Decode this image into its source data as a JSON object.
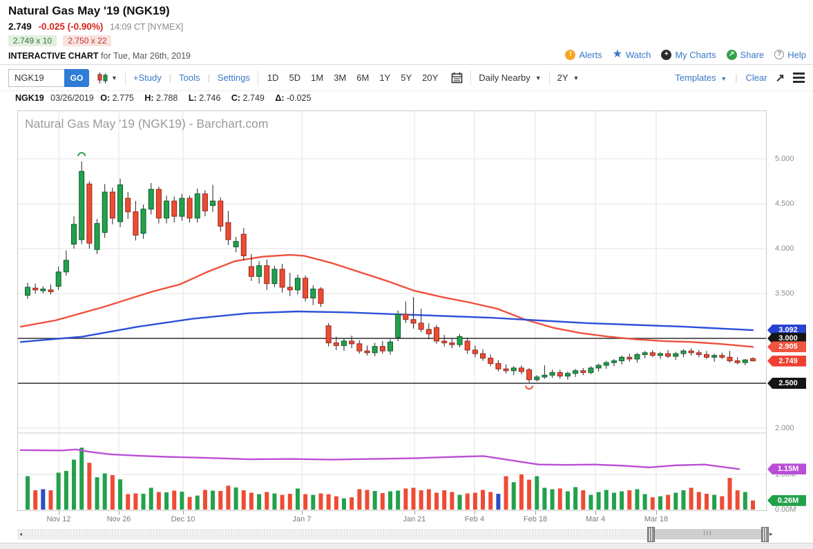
{
  "header": {
    "title": "Natural Gas May '19 (NGK19)",
    "last_price": "2.749",
    "change": "-0.025 (-0.90%)",
    "quote_time": "14:09 CT [NYMEX]",
    "bid": "2.749 x 10",
    "ask": "2.750 x 22",
    "chart_label": "INTERACTIVE CHART",
    "chart_date": " for Tue, Mar 26th, 2019",
    "links": {
      "alerts": "Alerts",
      "watch": "Watch",
      "my_charts": "My Charts",
      "share": "Share",
      "help": "Help"
    }
  },
  "toolbar": {
    "symbol_value": "NGK19",
    "go_label": "GO",
    "study_label": "+Study",
    "tools_label": "Tools",
    "settings_label": "Settings",
    "periods": [
      "1D",
      "5D",
      "1M",
      "3M",
      "6M",
      "1Y",
      "5Y",
      "20Y"
    ],
    "frequency_value": "Daily Nearby",
    "range_value": "2Y",
    "templates_label": "Templates",
    "clear_label": "Clear"
  },
  "ohlc_bar": {
    "symbol": "NGK19",
    "date": "03/26/2019",
    "o_label": "O:",
    "o": "2.775",
    "h_label": "H:",
    "h": "2.788",
    "l_label": "L:",
    "l": "2.746",
    "c_label": "C:",
    "c": "2.749",
    "delta_label": "Δ:",
    "delta": "-0.025"
  },
  "chart_data": {
    "type": "candlestick+volume",
    "watermark": "Natural Gas May '19 (NGK19) - Barchart.com",
    "grid": true,
    "legend_position": "none",
    "price_axis": {
      "ylim": [
        1.93,
        5.51
      ],
      "ticks": [
        {
          "label": "5.000",
          "value": 5.0
        },
        {
          "label": "4.500",
          "value": 4.5
        },
        {
          "label": "4.000",
          "value": 4.0
        },
        {
          "label": "3.500",
          "value": 3.5
        },
        {
          "label": "2.000",
          "value": 2.0
        }
      ]
    },
    "volume_axis": {
      "ylim": [
        0,
        2.2
      ],
      "unit": "M",
      "ticks": [
        {
          "label": "1.00M",
          "value": 1.0
        },
        {
          "label": "0.00M",
          "value": 0.0
        }
      ]
    },
    "x_ticks": [
      {
        "label": "Nov 12",
        "x": 60
      },
      {
        "label": "Nov 26",
        "x": 147
      },
      {
        "label": "Dec 10",
        "x": 240
      },
      {
        "label": "Jan 7",
        "x": 412
      },
      {
        "label": "Jan 21",
        "x": 575
      },
      {
        "label": "Feb 4",
        "x": 662
      },
      {
        "label": "Feb 18",
        "x": 750
      },
      {
        "label": "Mar 4",
        "x": 837
      },
      {
        "label": "Mar 18",
        "x": 925
      }
    ],
    "hlines": [
      3.0,
      2.5
    ],
    "candles": [
      [
        3.48,
        3.62,
        3.44,
        3.57
      ],
      [
        3.56,
        3.61,
        3.5,
        3.54
      ],
      [
        3.53,
        3.58,
        3.5,
        3.55
      ],
      [
        3.54,
        3.6,
        3.49,
        3.52
      ],
      [
        3.58,
        3.8,
        3.54,
        3.74
      ],
      [
        3.74,
        3.98,
        3.7,
        3.87
      ],
      [
        4.05,
        4.36,
        4.0,
        4.27
      ],
      [
        4.1,
        4.97,
        4.05,
        4.86
      ],
      [
        4.72,
        4.75,
        4.0,
        4.06
      ],
      [
        3.99,
        4.33,
        3.94,
        4.28
      ],
      [
        4.18,
        4.72,
        4.12,
        4.63
      ],
      [
        4.63,
        4.68,
        4.27,
        4.34
      ],
      [
        4.3,
        4.78,
        4.24,
        4.71
      ],
      [
        4.56,
        4.63,
        4.33,
        4.41
      ],
      [
        4.41,
        4.53,
        4.09,
        4.15
      ],
      [
        4.17,
        4.49,
        4.11,
        4.44
      ],
      [
        4.44,
        4.73,
        4.38,
        4.66
      ],
      [
        4.66,
        4.69,
        4.28,
        4.34
      ],
      [
        4.34,
        4.59,
        4.28,
        4.53
      ],
      [
        4.53,
        4.58,
        4.29,
        4.36
      ],
      [
        4.36,
        4.61,
        4.31,
        4.56
      ],
      [
        4.56,
        4.59,
        4.29,
        4.34
      ],
      [
        4.34,
        4.67,
        4.29,
        4.61
      ],
      [
        4.61,
        4.65,
        4.36,
        4.42
      ],
      [
        4.48,
        4.71,
        4.41,
        4.53
      ],
      [
        4.53,
        4.57,
        4.19,
        4.25
      ],
      [
        4.29,
        4.42,
        4.04,
        4.1
      ],
      [
        4.02,
        4.13,
        3.96,
        4.08
      ],
      [
        4.16,
        4.23,
        3.87,
        3.92
      ],
      [
        3.8,
        3.94,
        3.64,
        3.69
      ],
      [
        3.69,
        3.86,
        3.61,
        3.81
      ],
      [
        3.81,
        3.88,
        3.54,
        3.61
      ],
      [
        3.61,
        3.81,
        3.57,
        3.77
      ],
      [
        3.77,
        3.83,
        3.51,
        3.57
      ],
      [
        3.57,
        3.73,
        3.47,
        3.54
      ],
      [
        3.54,
        3.71,
        3.49,
        3.67
      ],
      [
        3.67,
        3.7,
        3.41,
        3.45
      ],
      [
        3.45,
        3.59,
        3.37,
        3.55
      ],
      [
        3.55,
        3.57,
        3.35,
        3.39
      ],
      [
        3.14,
        3.17,
        2.91,
        2.95
      ],
      [
        2.95,
        3.02,
        2.87,
        2.92
      ],
      [
        2.92,
        3.0,
        2.86,
        2.97
      ],
      [
        2.97,
        3.03,
        2.89,
        2.94
      ],
      [
        2.94,
        2.98,
        2.83,
        2.86
      ],
      [
        2.86,
        2.92,
        2.81,
        2.84
      ],
      [
        2.84,
        2.95,
        2.8,
        2.91
      ],
      [
        2.91,
        2.97,
        2.83,
        2.86
      ],
      [
        2.86,
        2.99,
        2.82,
        2.96
      ],
      [
        3.01,
        3.31,
        2.97,
        3.27
      ],
      [
        3.27,
        3.41,
        3.17,
        3.21
      ],
      [
        3.21,
        3.46,
        3.11,
        3.17
      ],
      [
        3.17,
        3.33,
        3.07,
        3.1
      ],
      [
        3.1,
        3.17,
        2.99,
        3.05
      ],
      [
        3.12,
        3.15,
        2.94,
        2.97
      ],
      [
        2.97,
        3.04,
        2.91,
        2.95
      ],
      [
        2.95,
        3.0,
        2.89,
        2.93
      ],
      [
        2.93,
        3.05,
        2.9,
        3.02
      ],
      [
        2.97,
        3.01,
        2.83,
        2.87
      ],
      [
        2.87,
        2.92,
        2.79,
        2.83
      ],
      [
        2.83,
        2.88,
        2.75,
        2.78
      ],
      [
        2.78,
        2.82,
        2.69,
        2.72
      ],
      [
        2.72,
        2.76,
        2.63,
        2.66
      ],
      [
        2.66,
        2.71,
        2.61,
        2.64
      ],
      [
        2.64,
        2.69,
        2.59,
        2.67
      ],
      [
        2.67,
        2.7,
        2.6,
        2.63
      ],
      [
        2.65,
        2.67,
        2.51,
        2.54
      ],
      [
        2.54,
        2.59,
        2.52,
        2.57
      ],
      [
        2.57,
        2.7,
        2.55,
        2.59
      ],
      [
        2.59,
        2.65,
        2.56,
        2.62
      ],
      [
        2.62,
        2.65,
        2.55,
        2.58
      ],
      [
        2.58,
        2.63,
        2.54,
        2.61
      ],
      [
        2.61,
        2.66,
        2.57,
        2.64
      ],
      [
        2.64,
        2.67,
        2.59,
        2.62
      ],
      [
        2.62,
        2.69,
        2.6,
        2.67
      ],
      [
        2.67,
        2.72,
        2.63,
        2.7
      ],
      [
        2.7,
        2.75,
        2.66,
        2.73
      ],
      [
        2.73,
        2.77,
        2.69,
        2.75
      ],
      [
        2.75,
        2.81,
        2.71,
        2.79
      ],
      [
        2.79,
        2.83,
        2.74,
        2.77
      ],
      [
        2.77,
        2.84,
        2.73,
        2.82
      ],
      [
        2.82,
        2.86,
        2.78,
        2.84
      ],
      [
        2.84,
        2.87,
        2.79,
        2.81
      ],
      [
        2.81,
        2.85,
        2.77,
        2.83
      ],
      [
        2.83,
        2.87,
        2.78,
        2.8
      ],
      [
        2.8,
        2.85,
        2.76,
        2.83
      ],
      [
        2.83,
        2.88,
        2.79,
        2.86
      ],
      [
        2.86,
        2.89,
        2.81,
        2.84
      ],
      [
        2.84,
        2.87,
        2.79,
        2.82
      ],
      [
        2.82,
        2.86,
        2.77,
        2.79
      ],
      [
        2.79,
        2.83,
        2.74,
        2.81
      ],
      [
        2.81,
        2.84,
        2.77,
        2.79
      ],
      [
        2.79,
        2.86,
        2.73,
        2.75
      ],
      [
        2.75,
        2.79,
        2.71,
        2.73
      ],
      [
        2.73,
        2.77,
        2.7,
        2.76
      ],
      [
        2.775,
        2.788,
        2.746,
        2.749
      ]
    ],
    "volumes": [
      0.95,
      0.55,
      0.58,
      0.55,
      1.05,
      1.1,
      1.42,
      1.76,
      1.33,
      0.92,
      1.03,
      0.98,
      0.86,
      0.44,
      0.46,
      0.45,
      0.62,
      0.5,
      0.49,
      0.54,
      0.51,
      0.36,
      0.4,
      0.56,
      0.54,
      0.53,
      0.68,
      0.63,
      0.55,
      0.48,
      0.44,
      0.5,
      0.46,
      0.42,
      0.45,
      0.6,
      0.44,
      0.42,
      0.46,
      0.44,
      0.38,
      0.32,
      0.35,
      0.58,
      0.56,
      0.53,
      0.47,
      0.52,
      0.54,
      0.6,
      0.62,
      0.55,
      0.58,
      0.48,
      0.55,
      0.5,
      0.42,
      0.46,
      0.48,
      0.56,
      0.5,
      0.45,
      0.95,
      0.78,
      1.0,
      0.85,
      0.95,
      0.62,
      0.58,
      0.6,
      0.52,
      0.64,
      0.55,
      0.42,
      0.5,
      0.56,
      0.48,
      0.52,
      0.55,
      0.58,
      0.44,
      0.35,
      0.38,
      0.42,
      0.48,
      0.55,
      0.62,
      0.5,
      0.45,
      0.42,
      0.38,
      0.9,
      0.55,
      0.5,
      0.26
    ],
    "volume_colors_override": {
      "2": "#2a4fc4",
      "61": "#2a4fc4"
    },
    "ma_red": [
      [
        5,
        3.13
      ],
      [
        55,
        3.2
      ],
      [
        125,
        3.35
      ],
      [
        195,
        3.52
      ],
      [
        235,
        3.6
      ],
      [
        275,
        3.74
      ],
      [
        315,
        3.86
      ],
      [
        355,
        3.91
      ],
      [
        395,
        3.93
      ],
      [
        415,
        3.92
      ],
      [
        455,
        3.84
      ],
      [
        495,
        3.74
      ],
      [
        535,
        3.64
      ],
      [
        575,
        3.53
      ],
      [
        615,
        3.46
      ],
      [
        655,
        3.4
      ],
      [
        695,
        3.33
      ],
      [
        715,
        3.27
      ],
      [
        735,
        3.21
      ],
      [
        775,
        3.12
      ],
      [
        815,
        3.06
      ],
      [
        855,
        3.02
      ],
      [
        895,
        2.99
      ],
      [
        935,
        2.97
      ],
      [
        975,
        2.96
      ],
      [
        1015,
        2.94
      ],
      [
        1065,
        2.905
      ]
    ],
    "ma_blue": [
      [
        5,
        2.96
      ],
      [
        95,
        3.02
      ],
      [
        175,
        3.13
      ],
      [
        255,
        3.22
      ],
      [
        335,
        3.28
      ],
      [
        405,
        3.3
      ],
      [
        475,
        3.29
      ],
      [
        545,
        3.27
      ],
      [
        615,
        3.25
      ],
      [
        685,
        3.23
      ],
      [
        755,
        3.2
      ],
      [
        825,
        3.17
      ],
      [
        895,
        3.15
      ],
      [
        965,
        3.13
      ],
      [
        1065,
        3.092
      ]
    ],
    "volume_ma": [
      [
        5,
        1.69
      ],
      [
        65,
        1.68
      ],
      [
        85,
        1.71
      ],
      [
        105,
        1.64
      ],
      [
        135,
        1.57
      ],
      [
        175,
        1.53
      ],
      [
        215,
        1.5
      ],
      [
        275,
        1.47
      ],
      [
        335,
        1.43
      ],
      [
        395,
        1.44
      ],
      [
        455,
        1.42
      ],
      [
        515,
        1.44
      ],
      [
        575,
        1.46
      ],
      [
        635,
        1.5
      ],
      [
        675,
        1.52
      ],
      [
        715,
        1.4
      ],
      [
        755,
        1.28
      ],
      [
        795,
        1.27
      ],
      [
        835,
        1.28
      ],
      [
        875,
        1.25
      ],
      [
        915,
        1.2
      ],
      [
        955,
        1.26
      ],
      [
        995,
        1.28
      ],
      [
        1045,
        1.15
      ]
    ],
    "markers": [
      {
        "index": 7,
        "price": 5.03,
        "shape": "arc-over",
        "color": "#23a14c"
      },
      {
        "index": 65,
        "price": 2.475,
        "shape": "arc-under",
        "color": "#ee4b35"
      }
    ],
    "flags": [
      {
        "label": "3.092",
        "color": "#2743d0",
        "panel": "price",
        "value": 3.092
      },
      {
        "label": "3.000",
        "color": "#151515",
        "panel": "price",
        "value": 3.0
      },
      {
        "label": "2.905",
        "color": "#f0533f",
        "panel": "price",
        "value": 2.905
      },
      {
        "label": "2.749",
        "color": "#ee4031",
        "panel": "price",
        "value": 2.749
      },
      {
        "label": "2.500",
        "color": "#151515",
        "panel": "price",
        "value": 2.5
      },
      {
        "label": "1.15M",
        "color": "#b94ed8",
        "panel": "volume",
        "value": 1.15
      },
      {
        "label": "0.26M",
        "color": "#22a14b",
        "panel": "volume",
        "value": 0.26
      }
    ],
    "colors": {
      "up": "#23a14c",
      "up_border": "#0e5c2d",
      "down": "#ee4b35",
      "down_border": "#93291c",
      "wick": "#222222",
      "ma_red": "#f0503c",
      "ma_blue": "#2b50d9",
      "volume_ma": "#bb4fd6",
      "grid": "#e3e3e3",
      "hline": "#2b2b2b",
      "border": "#c9c9c9"
    }
  },
  "scrollbar": {
    "grip": "III",
    "left_arrow": "◂",
    "right_arrow": "▸"
  }
}
